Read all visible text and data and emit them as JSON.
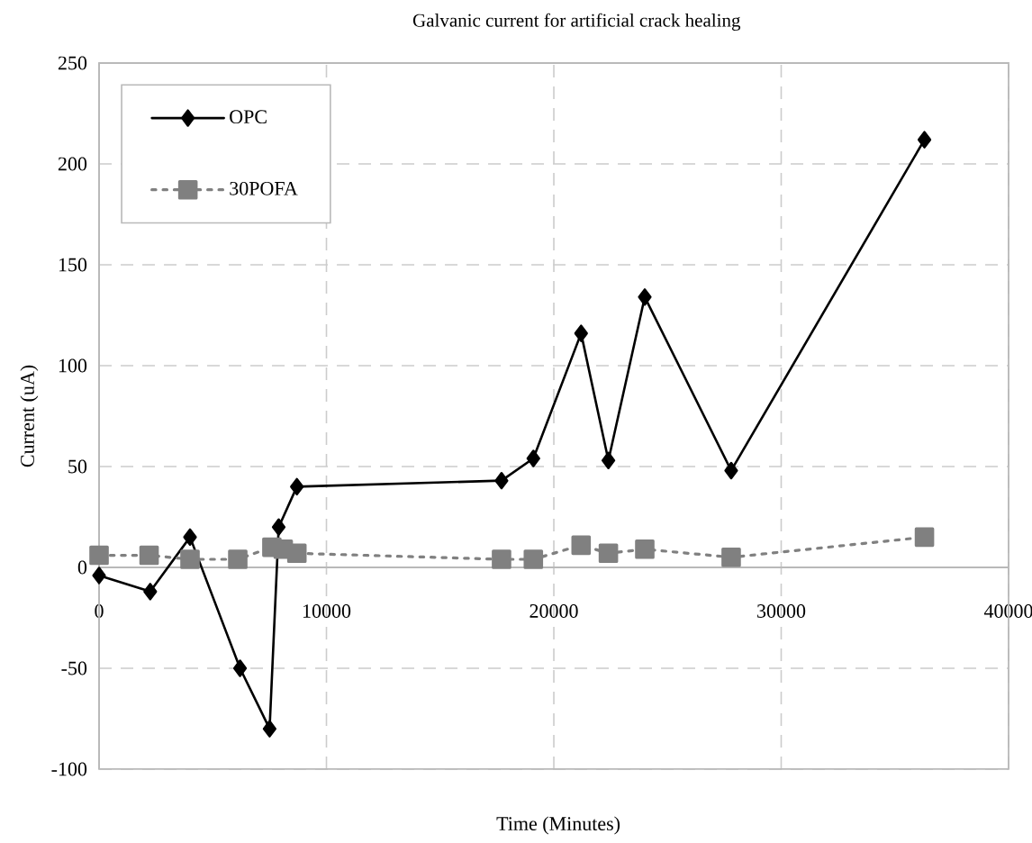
{
  "chart_data": {
    "type": "line",
    "title": "Galvanic current for artificial crack healing",
    "xlabel": "Time (Minutes)",
    "ylabel": "Current (uA)",
    "xlim": [
      0,
      40000
    ],
    "xticks": [
      0,
      10000,
      20000,
      30000,
      40000
    ],
    "ylim": [
      -100,
      250
    ],
    "yticks": [
      -100,
      -50,
      0,
      50,
      100,
      150,
      200,
      250
    ],
    "grid": true,
    "legend": "top left",
    "series": [
      {
        "name": "OPC",
        "color": "#000000",
        "marker": "diamond",
        "line_style": "solid",
        "x": [
          0,
          2250,
          4000,
          6200,
          7500,
          7900,
          8700,
          17700,
          19100,
          21200,
          22400,
          24000,
          27800,
          36300
        ],
        "values": [
          -4,
          -12,
          15,
          -50,
          -80,
          20,
          40,
          43,
          54,
          116,
          53,
          134,
          48,
          212
        ]
      },
      {
        "name": "30POFA",
        "color": "#808080",
        "marker": "square",
        "line_style": "dotted",
        "x": [
          0,
          2200,
          4000,
          6100,
          7600,
          8100,
          8700,
          17700,
          19100,
          21200,
          22400,
          24000,
          27800,
          36300
        ],
        "values": [
          6,
          6,
          4,
          4,
          10,
          9,
          7,
          4,
          4,
          11,
          7,
          9,
          5,
          15
        ]
      }
    ]
  }
}
